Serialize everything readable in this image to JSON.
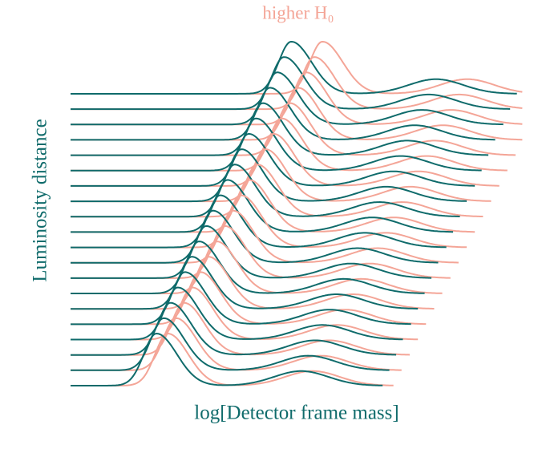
{
  "chart_data": {
    "type": "ridgeline",
    "title": "higher H₀",
    "xlabel": "log[Detector frame mass]",
    "ylabel": "Luminosity distance",
    "xlim": [
      0,
      1
    ],
    "series": [
      {
        "color": "#f4a597",
        "values": [
          0.215,
          0.233,
          0.251,
          0.269,
          0.287,
          0.305,
          0.323,
          0.341,
          0.359,
          0.377,
          0.395,
          0.413,
          0.431,
          0.449,
          0.467,
          0.485,
          0.503,
          0.521,
          0.539,
          0.557
        ]
      },
      {
        "color": "#0f6b6b",
        "values": [
          0.19,
          0.206,
          0.221,
          0.237,
          0.253,
          0.268,
          0.284,
          0.3,
          0.315,
          0.331,
          0.347,
          0.363,
          0.378,
          0.394,
          0.41,
          0.425,
          0.441,
          0.457,
          0.472,
          0.488
        ]
      }
    ]
  }
}
